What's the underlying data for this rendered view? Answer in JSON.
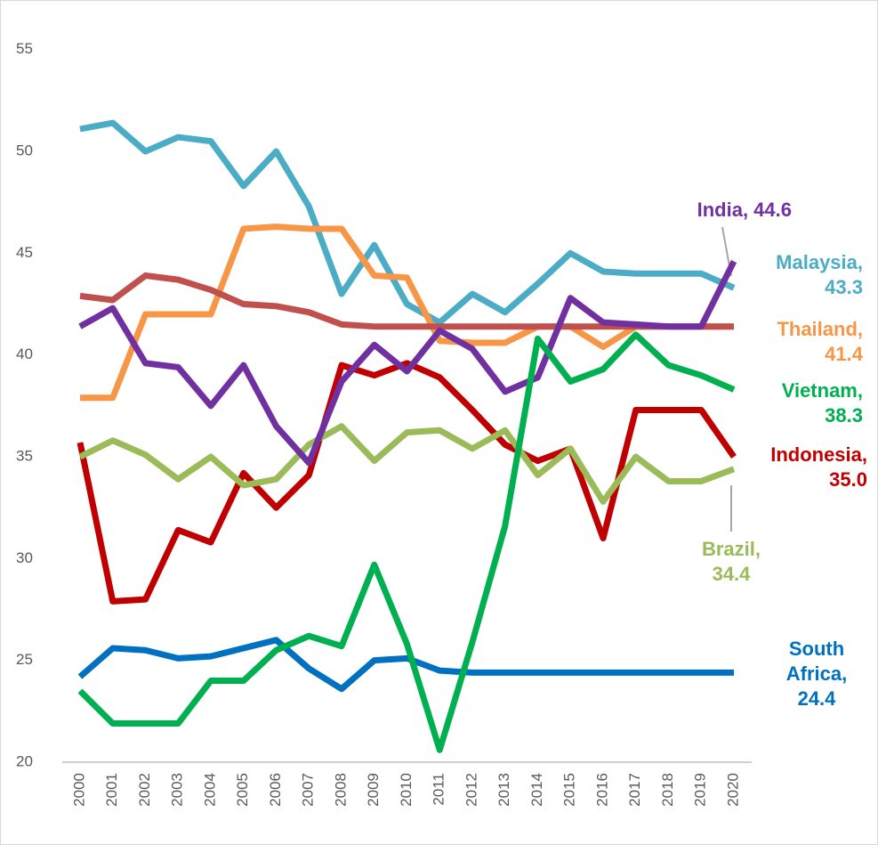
{
  "chart_data": {
    "type": "line",
    "x": [
      2000,
      2001,
      2002,
      2003,
      2004,
      2005,
      2006,
      2007,
      2008,
      2009,
      2010,
      2011,
      2012,
      2013,
      2014,
      2015,
      2016,
      2017,
      2018,
      2019,
      2020
    ],
    "ylim": [
      20,
      57
    ],
    "yticks": [
      20,
      25,
      30,
      35,
      40,
      45,
      50,
      55
    ],
    "series": [
      {
        "name": "Malaysia",
        "color": "#4bacc6",
        "label": [
          "Malaysia,",
          "43.3"
        ],
        "values": [
          51.1,
          51.4,
          50.0,
          50.7,
          50.5,
          48.3,
          50.0,
          47.3,
          43.0,
          45.4,
          42.5,
          41.6,
          43.0,
          42.1,
          43.5,
          45.0,
          44.1,
          44.0,
          44.0,
          44.0,
          43.3
        ]
      },
      {
        "name": "Thailand",
        "color": "#f79646",
        "label": [
          "Thailand,",
          "41.4"
        ],
        "values": [
          37.9,
          37.9,
          42.0,
          42.0,
          42.0,
          46.2,
          46.3,
          46.2,
          46.2,
          43.9,
          43.8,
          40.7,
          40.6,
          40.6,
          41.4,
          41.4,
          40.4,
          41.4,
          41.4,
          41.4,
          41.4
        ]
      },
      {
        "color": "#c0504d",
        "values": [
          42.9,
          42.7,
          43.9,
          43.7,
          43.2,
          42.5,
          42.4,
          42.1,
          41.5,
          41.4,
          41.4,
          41.4,
          41.4,
          41.4,
          41.4,
          41.4,
          41.4,
          41.4,
          41.4,
          41.4,
          41.4
        ]
      },
      {
        "name": "Indonesia",
        "color": "#c00000",
        "label": [
          "Indonesia,",
          "35.0"
        ],
        "values": [
          35.7,
          27.9,
          28.0,
          31.4,
          30.8,
          34.2,
          32.5,
          34.1,
          39.5,
          39.0,
          39.6,
          38.9,
          37.3,
          35.6,
          34.8,
          35.4,
          31.0,
          37.3,
          37.3,
          37.3,
          35.0
        ]
      },
      {
        "name": "Brazil",
        "color": "#9bbb59",
        "label": [
          "Brazil,",
          "34.4"
        ],
        "values": [
          35.0,
          35.8,
          35.1,
          33.9,
          35.0,
          33.6,
          33.9,
          35.6,
          36.5,
          34.8,
          36.2,
          36.3,
          35.4,
          36.3,
          34.1,
          35.4,
          32.8,
          35.0,
          33.8,
          33.8,
          34.4
        ]
      },
      {
        "name": "South Africa",
        "color": "#0070c0",
        "label": [
          "South",
          "Africa,",
          "24.4"
        ],
        "values": [
          24.2,
          25.6,
          25.5,
          25.1,
          25.2,
          25.6,
          26.0,
          24.6,
          23.6,
          25.0,
          25.1,
          24.5,
          24.4,
          24.4,
          24.4,
          24.4,
          24.4,
          24.4,
          24.4,
          24.4,
          24.4
        ]
      },
      {
        "name": "India",
        "color": "#7030a0",
        "label": [
          "India, 44.6"
        ],
        "values": [
          41.4,
          42.3,
          39.6,
          39.4,
          37.5,
          39.5,
          36.5,
          34.7,
          38.7,
          40.5,
          39.2,
          41.2,
          40.3,
          38.2,
          38.9,
          42.8,
          41.6,
          41.5,
          41.4,
          41.4,
          44.6
        ]
      },
      {
        "name": "Vietnam",
        "color": "#00b050",
        "label": [
          "Vietnam,",
          "38.3"
        ],
        "values": [
          23.5,
          21.9,
          21.9,
          21.9,
          24.0,
          24.0,
          25.5,
          26.2,
          25.7,
          29.7,
          25.8,
          20.6,
          25.9,
          31.6,
          40.8,
          38.7,
          39.3,
          41.0,
          39.5,
          39.0,
          38.3
        ]
      }
    ]
  }
}
